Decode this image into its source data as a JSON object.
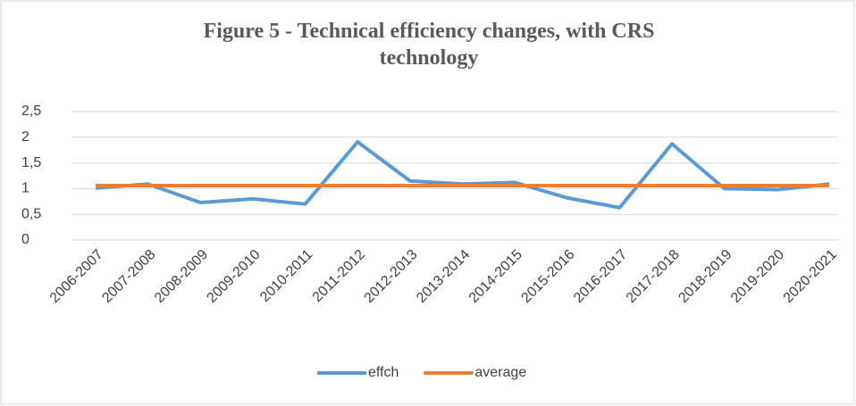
{
  "chart_data": {
    "type": "line",
    "title": "Figure 5 - Technical efficiency changes, with CRS technology",
    "categories": [
      "2006-2007",
      "2007-2008",
      "2008-2009",
      "2009-2010",
      "2010-2011",
      "2011-2012",
      "2012-2013",
      "2013-2014",
      "2014-2015",
      "2015-2016",
      "2016-2017",
      "2017-2018",
      "2018-2019",
      "2019-2020",
      "2020-2021"
    ],
    "series": [
      {
        "name": "effch",
        "color": "#5b9bd5",
        "values": [
          1.01,
          1.09,
          0.73,
          0.8,
          0.7,
          1.91,
          1.15,
          1.09,
          1.12,
          0.82,
          0.63,
          1.87,
          1.0,
          0.98,
          1.09
        ]
      },
      {
        "name": "average",
        "color": "#ed7d31",
        "values": [
          1.06,
          1.06,
          1.06,
          1.06,
          1.06,
          1.06,
          1.06,
          1.06,
          1.06,
          1.06,
          1.06,
          1.06,
          1.06,
          1.06,
          1.06
        ]
      }
    ],
    "ylim": [
      0,
      2.5
    ],
    "yticks": [
      0,
      {
        "value": 0.5,
        "label": "0,5"
      },
      1,
      {
        "value": 1.5,
        "label": "1,5"
      },
      2,
      {
        "value": 2.5,
        "label": "2,5"
      }
    ],
    "grid": true,
    "legend": "bottom"
  }
}
